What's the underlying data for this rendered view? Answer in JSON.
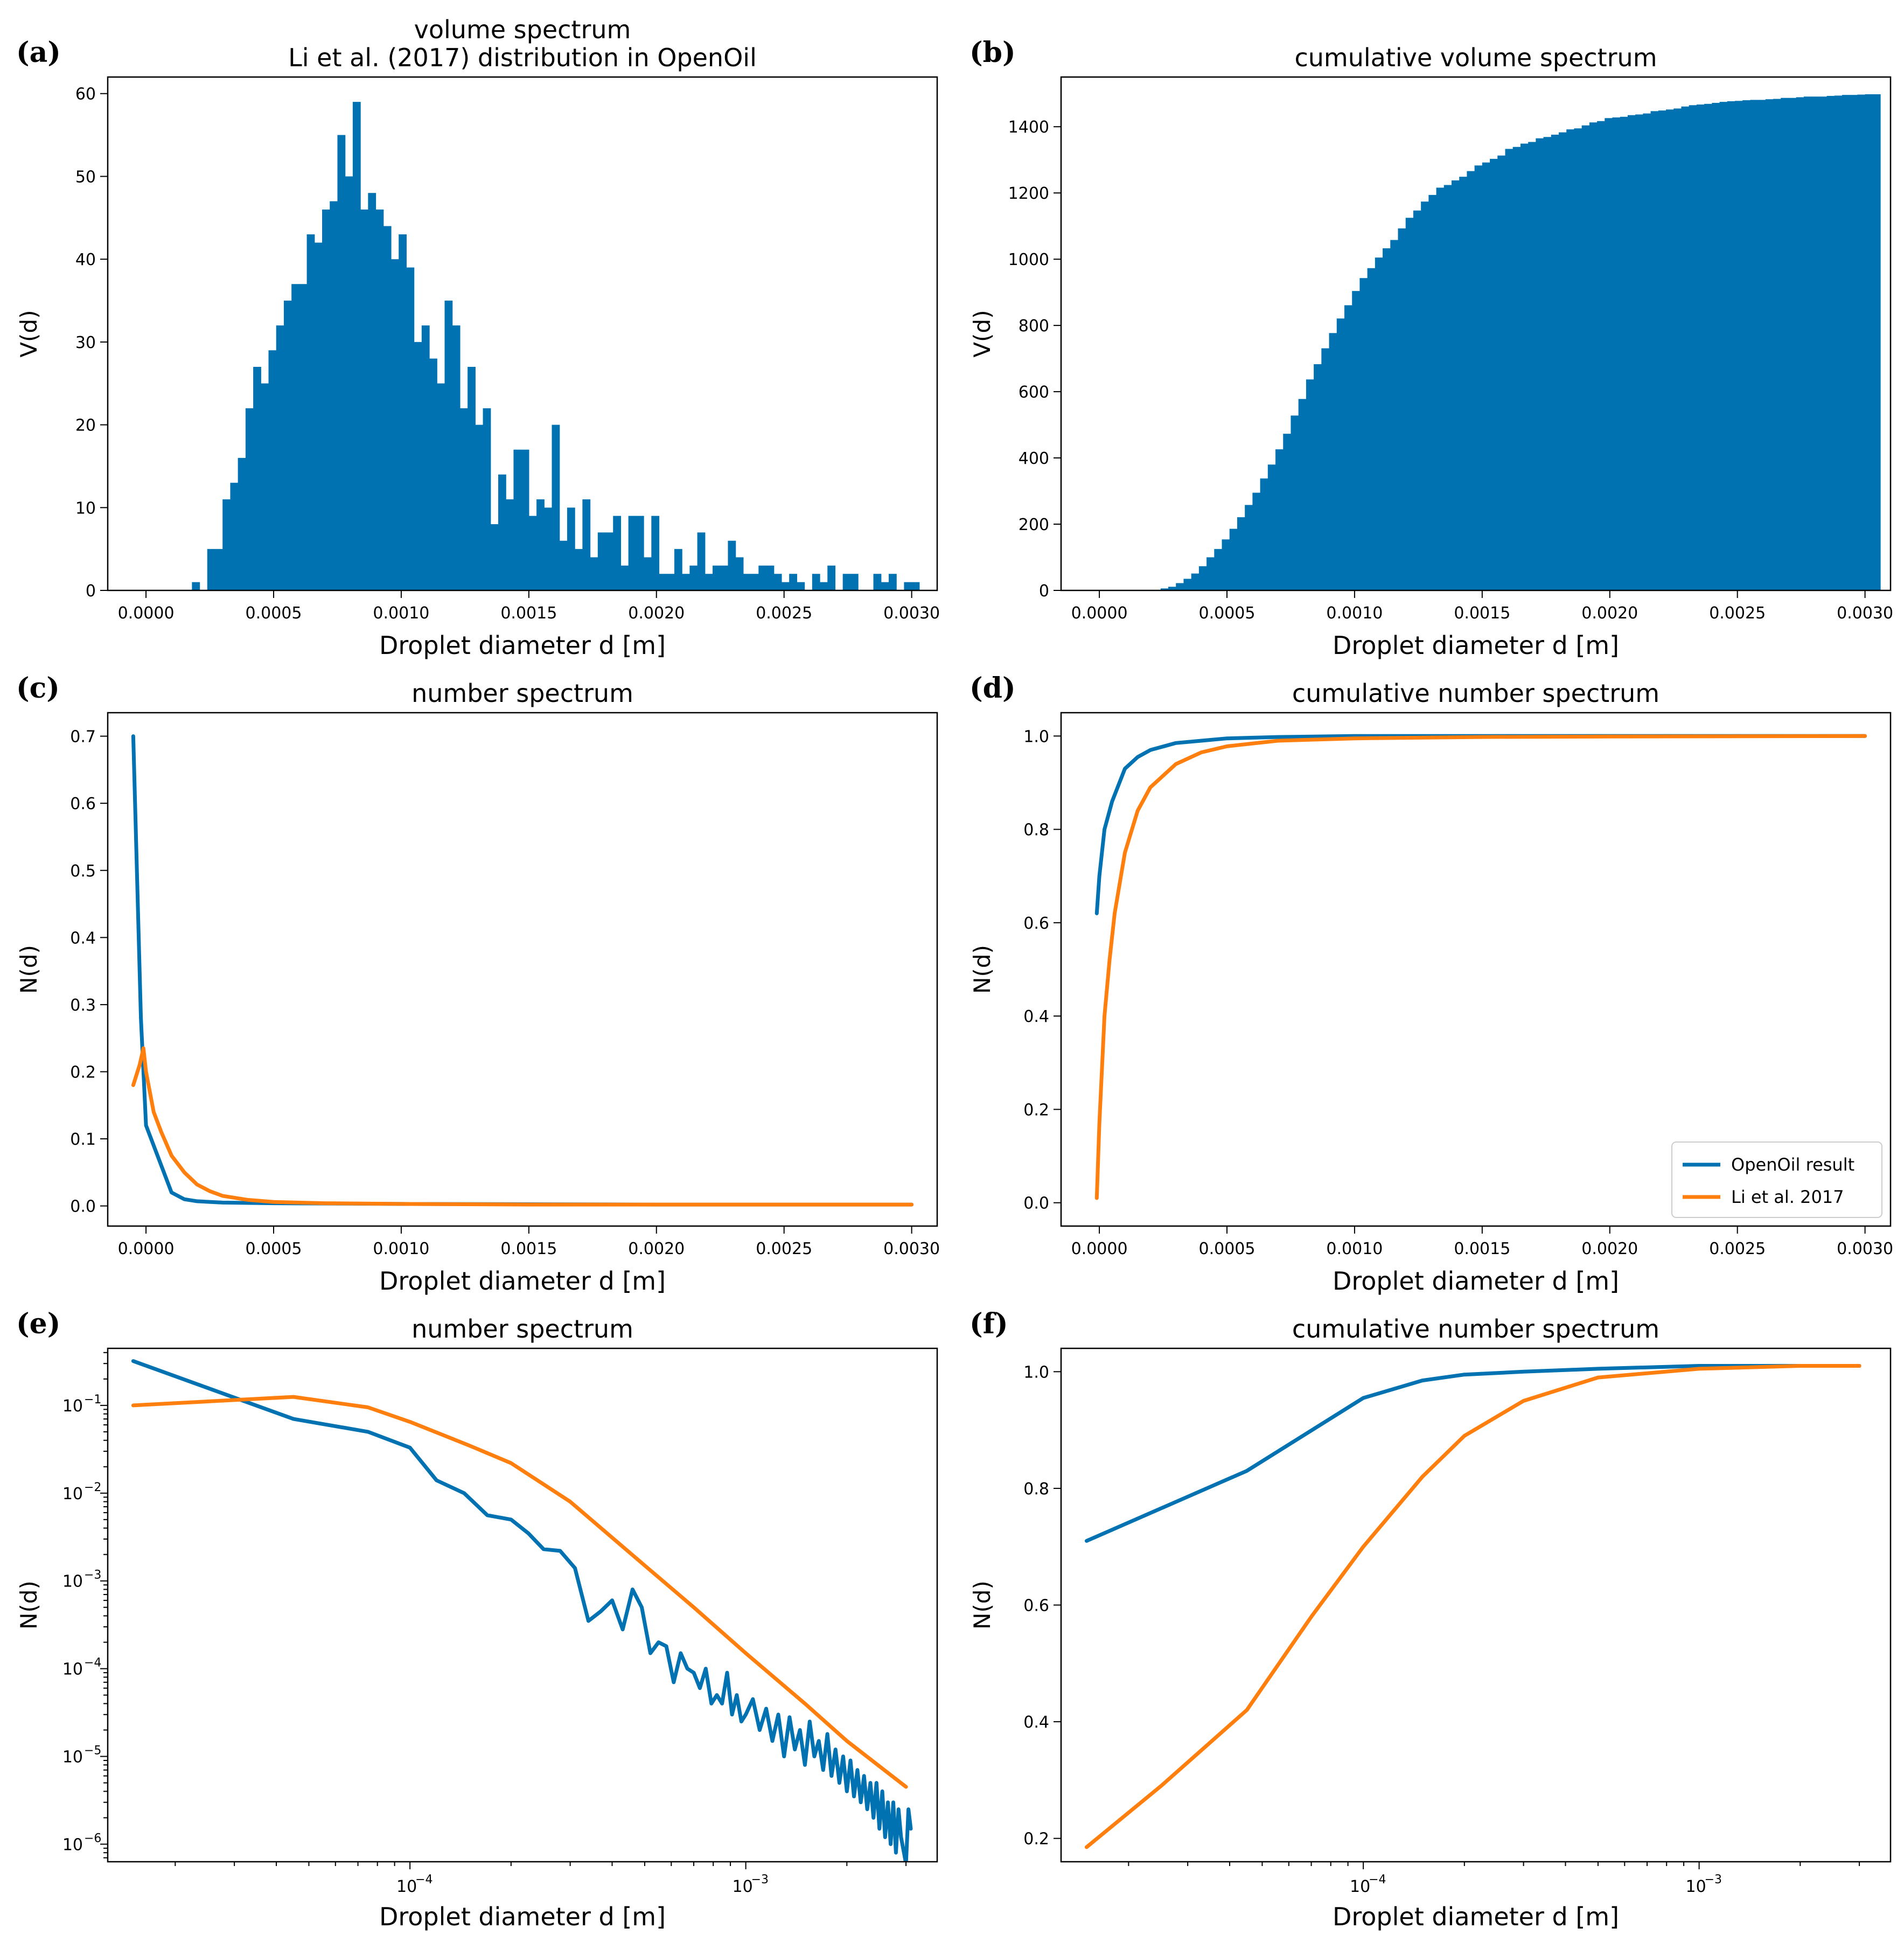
{
  "colors": {
    "blue": "#0072b2",
    "orange": "#ff7f0e",
    "axis": "#000000"
  },
  "chart_data": [
    {
      "panel": "a",
      "panel_label": "(a)",
      "type": "bar",
      "title": "volume spectrum",
      "subtitle": "Li et al. (2017) distribution in OpenOil",
      "xlabel": "Droplet diameter d [m]",
      "ylabel": "V(d)",
      "xlim": [
        -0.00015,
        0.0031
      ],
      "ylim": [
        0,
        62
      ],
      "bin_start": 0.0,
      "bin_width": 3e-05,
      "xticks": [
        0,
        0.0005,
        0.001,
        0.0015,
        0.002,
        0.0025,
        0.003
      ],
      "xtick_labels": [
        "0.0000",
        "0.0005",
        "0.0010",
        "0.0015",
        "0.0020",
        "0.0025",
        "0.0030"
      ],
      "yticks": [
        0,
        10,
        20,
        30,
        40,
        50,
        60
      ],
      "ytick_labels": [
        "0",
        "10",
        "20",
        "30",
        "40",
        "50",
        "60"
      ],
      "values": [
        0,
        0,
        0,
        0,
        0,
        0,
        1,
        0,
        5,
        5,
        11,
        13,
        16,
        22,
        27,
        25,
        29,
        32,
        35,
        37,
        37,
        43,
        42,
        46,
        47,
        55,
        50,
        59,
        46,
        48,
        46,
        44,
        40,
        43,
        39,
        30,
        32,
        28,
        25,
        35,
        32,
        22,
        27,
        20,
        22,
        8,
        14,
        11,
        17,
        17,
        9,
        11,
        10,
        20,
        6,
        10,
        5,
        11,
        4,
        7,
        7,
        9,
        3,
        9,
        9,
        4,
        9,
        2,
        2,
        5,
        2,
        3,
        7,
        2,
        3,
        3,
        6,
        4,
        2,
        2,
        3,
        3,
        2,
        1,
        2,
        1,
        0,
        2,
        1,
        3,
        0,
        2,
        2,
        0,
        0,
        2,
        1,
        2,
        0,
        1,
        1,
        0
      ],
      "color": "#0072b2"
    },
    {
      "panel": "b",
      "panel_label": "(b)",
      "type": "bar",
      "title": "cumulative volume spectrum",
      "xlabel": "Droplet diameter d [m]",
      "ylabel": "V(d)",
      "xlim": [
        -0.00015,
        0.0031
      ],
      "ylim": [
        0,
        1550
      ],
      "bin_start": 0.0,
      "bin_width": 3e-05,
      "cumulative_of": "a",
      "xticks": [
        0,
        0.0005,
        0.001,
        0.0015,
        0.002,
        0.0025,
        0.003
      ],
      "xtick_labels": [
        "0.0000",
        "0.0005",
        "0.0010",
        "0.0015",
        "0.0020",
        "0.0025",
        "0.0030"
      ],
      "yticks": [
        0,
        200,
        400,
        600,
        800,
        1000,
        1200,
        1400
      ],
      "ytick_labels": [
        "0",
        "200",
        "400",
        "600",
        "800",
        "1000",
        "1200",
        "1400"
      ],
      "color": "#0072b2"
    },
    {
      "panel": "c",
      "panel_label": "(c)",
      "type": "line",
      "title": "number spectrum",
      "xlabel": "Droplet diameter d [m]",
      "ylabel": "N(d)",
      "xlim": [
        -0.00015,
        0.0031
      ],
      "ylim": [
        -0.03,
        0.735
      ],
      "xticks": [
        0,
        0.0005,
        0.001,
        0.0015,
        0.002,
        0.0025,
        0.003
      ],
      "xtick_labels": [
        "0.0000",
        "0.0005",
        "0.0010",
        "0.0015",
        "0.0020",
        "0.0025",
        "0.0030"
      ],
      "yticks": [
        0,
        0.1,
        0.2,
        0.3,
        0.4,
        0.5,
        0.6,
        0.7
      ],
      "ytick_labels": [
        "0.0",
        "0.1",
        "0.2",
        "0.3",
        "0.4",
        "0.5",
        "0.6",
        "0.7"
      ],
      "series": [
        {
          "name": "OpenOil result",
          "color": "#0072b2",
          "x": [
            -5e-05,
            -2e-05,
            0.0,
            5e-05,
            0.0001,
            0.00015,
            0.0002,
            0.0003,
            0.0005,
            0.001,
            0.002,
            0.003
          ],
          "y": [
            0.7,
            0.28,
            0.12,
            0.07,
            0.02,
            0.01,
            0.007,
            0.005,
            0.004,
            0.003,
            0.002,
            0.002
          ]
        },
        {
          "name": "Li et al. 2017",
          "color": "#ff7f0e",
          "x": [
            -5e-05,
            -2.5e-05,
            -1e-05,
            0.0,
            3e-05,
            6e-05,
            0.0001,
            0.00015,
            0.0002,
            0.00025,
            0.0003,
            0.0004,
            0.0005,
            0.0007,
            0.001,
            0.0015,
            0.002,
            0.003
          ],
          "y": [
            0.18,
            0.21,
            0.235,
            0.2,
            0.14,
            0.11,
            0.075,
            0.05,
            0.032,
            0.022,
            0.015,
            0.009,
            0.006,
            0.004,
            0.003,
            0.002,
            0.002,
            0.002
          ]
        }
      ]
    },
    {
      "panel": "d",
      "panel_label": "(d)",
      "type": "line",
      "title": "cumulative number spectrum",
      "xlabel": "Droplet diameter d [m]",
      "ylabel": "N(d)",
      "xlim": [
        -0.00015,
        0.0031
      ],
      "ylim": [
        -0.05,
        1.05
      ],
      "xticks": [
        0,
        0.0005,
        0.001,
        0.0015,
        0.002,
        0.0025,
        0.003
      ],
      "xtick_labels": [
        "0.0000",
        "0.0005",
        "0.0010",
        "0.0015",
        "0.0020",
        "0.0025",
        "0.0030"
      ],
      "yticks": [
        0,
        0.2,
        0.4,
        0.6,
        0.8,
        1.0
      ],
      "ytick_labels": [
        "0.0",
        "0.2",
        "0.4",
        "0.6",
        "0.8",
        "1.0"
      ],
      "legend_position": "lower-right",
      "series": [
        {
          "name": "OpenOil result",
          "color": "#0072b2",
          "x": [
            -1e-05,
            0.0,
            2e-05,
            5e-05,
            0.0001,
            0.00015,
            0.0002,
            0.0003,
            0.0004,
            0.0005,
            0.0007,
            0.001,
            0.002,
            0.003
          ],
          "y": [
            0.62,
            0.7,
            0.8,
            0.86,
            0.93,
            0.955,
            0.97,
            0.985,
            0.99,
            0.995,
            0.998,
            1.0,
            1.0,
            1.0
          ]
        },
        {
          "name": "Li et al. 2017",
          "color": "#ff7f0e",
          "x": [
            -1e-05,
            0.0,
            2e-05,
            4e-05,
            6e-05,
            0.0001,
            0.00015,
            0.0002,
            0.0003,
            0.0004,
            0.0005,
            0.0007,
            0.001,
            0.0015,
            0.002,
            0.003
          ],
          "y": [
            0.01,
            0.17,
            0.4,
            0.52,
            0.62,
            0.75,
            0.84,
            0.89,
            0.94,
            0.965,
            0.978,
            0.99,
            0.995,
            0.998,
            0.999,
            1.0
          ]
        }
      ]
    },
    {
      "panel": "e",
      "panel_label": "(e)",
      "type": "line",
      "title": "number spectrum",
      "xlabel": "Droplet diameter d [m]",
      "ylabel": "N(d)",
      "xscale": "log",
      "yscale": "log",
      "xlim_exp": [
        -4.9,
        -2.43
      ],
      "ylim_exp": [
        -6.2,
        -0.35
      ],
      "xticks_exp": [
        -4,
        -3
      ],
      "yticks_exp": [
        -1,
        -2,
        -3,
        -4,
        -5,
        -6
      ],
      "series": [
        {
          "name": "OpenOil result",
          "color": "#0072b2",
          "x": [
            1.5e-05,
            4.5e-05,
            7.5e-05,
            0.0001,
            0.00012,
            0.000145,
            0.00017,
            0.0002,
            0.000225,
            0.00025,
            0.00028,
            0.00031,
            0.00034,
            0.00037,
            0.0004,
            0.00043,
            0.00046,
            0.00049,
            0.00052,
            0.00055,
            0.00058,
            0.00061,
            0.00064,
            0.00067,
            0.0007,
            0.00073,
            0.00076,
            0.00079,
            0.00082,
            0.00085,
            0.00088,
            0.00091,
            0.00094,
            0.00097,
            0.001,
            0.00105,
            0.0011,
            0.00115,
            0.0012,
            0.00125,
            0.0013,
            0.00135,
            0.0014,
            0.00145,
            0.0015,
            0.00155,
            0.0016,
            0.00165,
            0.0017,
            0.00175,
            0.0018,
            0.00185,
            0.0019,
            0.00195,
            0.002,
            0.00205,
            0.0021,
            0.00215,
            0.0022,
            0.00225,
            0.0023,
            0.00235,
            0.0024,
            0.00245,
            0.0025,
            0.00255,
            0.0026,
            0.00265,
            0.0027,
            0.00275,
            0.0028,
            0.00285,
            0.0029,
            0.003,
            0.00305,
            0.0031
          ],
          "y": [
            0.32,
            0.07,
            0.05,
            0.033,
            0.014,
            0.01,
            0.0056,
            0.005,
            0.0035,
            0.0023,
            0.0022,
            0.0014,
            0.00035,
            0.00045,
            0.0006,
            0.00028,
            0.0008,
            0.0005,
            0.00015,
            0.0002,
            0.00018,
            7e-05,
            0.00015,
            0.0001,
            9e-05,
            6e-05,
            0.0001,
            4e-05,
            5e-05,
            4e-05,
            9e-05,
            3e-05,
            5e-05,
            2.5e-05,
            3e-05,
            4.5e-05,
            2e-05,
            3.5e-05,
            1.5e-05,
            3e-05,
            1e-05,
            2.8e-05,
            1.2e-05,
            2e-05,
            8e-06,
            2.5e-05,
            1e-05,
            1.5e-05,
            7e-06,
            1.8e-05,
            6e-06,
            1.2e-05,
            5e-06,
            1e-05,
            4e-06,
            9e-06,
            3.5e-06,
            7e-06,
            3e-06,
            6e-06,
            2.5e-06,
            5e-06,
            2e-06,
            5e-06,
            1.5e-06,
            4e-06,
            1.2e-06,
            3e-06,
            1e-06,
            3e-06,
            8e-07,
            2.5e-06,
            1.2e-06,
            6e-07,
            2.5e-06,
            1.5e-06
          ]
        },
        {
          "name": "Li et al. 2017",
          "color": "#ff7f0e",
          "x": [
            1.5e-05,
            4.5e-05,
            7.5e-05,
            0.0001,
            0.00015,
            0.0002,
            0.0003,
            0.0005,
            0.0007,
            0.001,
            0.0015,
            0.002,
            0.003
          ],
          "y": [
            0.1,
            0.125,
            0.095,
            0.065,
            0.035,
            0.022,
            0.008,
            0.0015,
            0.0005,
            0.00015,
            4e-05,
            1.5e-05,
            4.5e-06
          ]
        }
      ]
    },
    {
      "panel": "f",
      "panel_label": "(f)",
      "type": "line",
      "title": "cumulative number spectrum",
      "xlabel": "Droplet diameter d [m]",
      "ylabel": "N(d)",
      "xscale": "log",
      "xlim_exp": [
        -4.9,
        -2.43
      ],
      "ylim": [
        0.16,
        1.04
      ],
      "xticks_exp": [
        -4,
        -3
      ],
      "yticks": [
        0.2,
        0.4,
        0.6,
        0.8,
        1.0
      ],
      "ytick_labels": [
        "0.2",
        "0.4",
        "0.6",
        "0.8",
        "1.0"
      ],
      "series": [
        {
          "name": "OpenOil result",
          "color": "#0072b2",
          "x": [
            1.5e-05,
            4.5e-05,
            0.0001,
            0.00015,
            0.0002,
            0.0003,
            0.0005,
            0.001,
            0.002,
            0.003
          ],
          "y": [
            0.71,
            0.83,
            0.955,
            0.985,
            0.995,
            1.0,
            1.005,
            1.01,
            1.01,
            1.01
          ]
        },
        {
          "name": "Li et al. 2017",
          "color": "#ff7f0e",
          "x": [
            1.5e-05,
            2.5e-05,
            4.5e-05,
            7e-05,
            0.0001,
            0.00015,
            0.0002,
            0.0003,
            0.0005,
            0.001,
            0.002,
            0.003
          ],
          "y": [
            0.185,
            0.29,
            0.42,
            0.58,
            0.7,
            0.82,
            0.89,
            0.95,
            0.99,
            1.005,
            1.01,
            1.01
          ]
        }
      ]
    }
  ]
}
